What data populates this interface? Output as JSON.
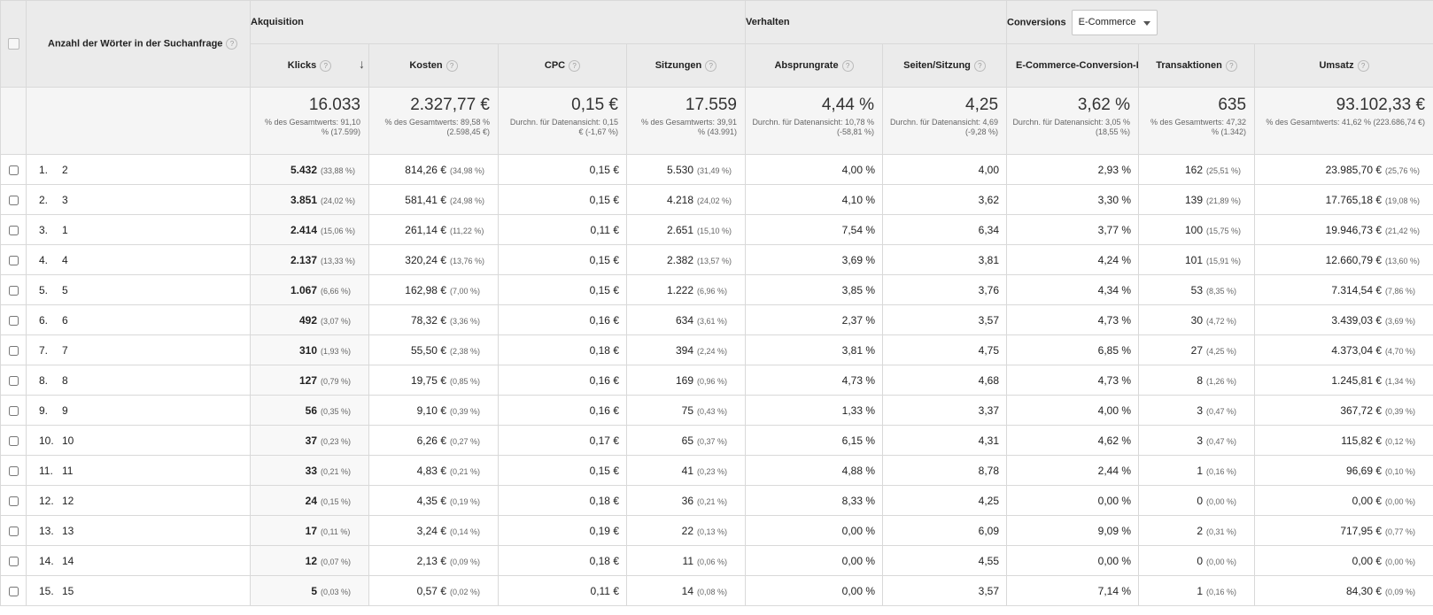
{
  "header": {
    "dimension": "Anzahl der Wörter in der Suchanfrage",
    "group_acquisition": "Akquisition",
    "group_behavior": "Verhalten",
    "group_conversions": "Conversions",
    "conversion_select_value": "E-Commerce",
    "help_glyph": "?",
    "sort_glyph": "↓",
    "columns": {
      "klicks": "Klicks",
      "kosten": "Kosten",
      "cpc": "CPC",
      "sitzungen": "Sitzungen",
      "absprungrate": "Absprungrate",
      "seiten": "Seiten/Sitzung",
      "ecr": "E-Commerce-Conversion-Rate",
      "transaktionen": "Transaktionen",
      "umsatz": "Umsatz"
    }
  },
  "totals": {
    "klicks": {
      "value": "16.033",
      "sub": "% des Gesamtwerts: 91,10 % (17.599)"
    },
    "kosten": {
      "value": "2.327,77 €",
      "sub": "% des Gesamtwerts: 89,58 % (2.598,45 €)"
    },
    "cpc": {
      "value": "0,15 €",
      "sub": "Durchn. für Datenansicht: 0,15 € (-1,67 %)"
    },
    "sitzungen": {
      "value": "17.559",
      "sub": "% des Gesamtwerts: 39,91 % (43.991)"
    },
    "absprungrate": {
      "value": "4,44 %",
      "sub": "Durchn. für Datenansicht: 10,78 % (-58,81 %)"
    },
    "seiten": {
      "value": "4,25",
      "sub": "Durchn. für Datenansicht: 4,69 (-9,28 %)"
    },
    "ecr": {
      "value": "3,62 %",
      "sub": "Durchn. für Datenansicht: 3,05 % (18,55 %)"
    },
    "transaktionen": {
      "value": "635",
      "sub": "% des Gesamtwerts: 47,32 % (1.342)"
    },
    "umsatz": {
      "value": "93.102,33 €",
      "sub": "% des Gesamtwerts: 41,62 % (223.686,74 €)"
    }
  },
  "rows": [
    {
      "idx": "1.",
      "dim": "2",
      "klicks": "5.432",
      "klicks_pct": "(33,88 %)",
      "kosten": "814,26 €",
      "kosten_pct": "(34,98 %)",
      "cpc": "0,15 €",
      "sitzungen": "5.530",
      "sitzungen_pct": "(31,49 %)",
      "absprungrate": "4,00 %",
      "seiten": "4,00",
      "ecr": "2,93 %",
      "transaktionen": "162",
      "transaktionen_pct": "(25,51 %)",
      "umsatz": "23.985,70 €",
      "umsatz_pct": "(25,76 %)"
    },
    {
      "idx": "2.",
      "dim": "3",
      "klicks": "3.851",
      "klicks_pct": "(24,02 %)",
      "kosten": "581,41 €",
      "kosten_pct": "(24,98 %)",
      "cpc": "0,15 €",
      "sitzungen": "4.218",
      "sitzungen_pct": "(24,02 %)",
      "absprungrate": "4,10 %",
      "seiten": "3,62",
      "ecr": "3,30 %",
      "transaktionen": "139",
      "transaktionen_pct": "(21,89 %)",
      "umsatz": "17.765,18 €",
      "umsatz_pct": "(19,08 %)"
    },
    {
      "idx": "3.",
      "dim": "1",
      "klicks": "2.414",
      "klicks_pct": "(15,06 %)",
      "kosten": "261,14 €",
      "kosten_pct": "(11,22 %)",
      "cpc": "0,11 €",
      "sitzungen": "2.651",
      "sitzungen_pct": "(15,10 %)",
      "absprungrate": "7,54 %",
      "seiten": "6,34",
      "ecr": "3,77 %",
      "transaktionen": "100",
      "transaktionen_pct": "(15,75 %)",
      "umsatz": "19.946,73 €",
      "umsatz_pct": "(21,42 %)"
    },
    {
      "idx": "4.",
      "dim": "4",
      "klicks": "2.137",
      "klicks_pct": "(13,33 %)",
      "kosten": "320,24 €",
      "kosten_pct": "(13,76 %)",
      "cpc": "0,15 €",
      "sitzungen": "2.382",
      "sitzungen_pct": "(13,57 %)",
      "absprungrate": "3,69 %",
      "seiten": "3,81",
      "ecr": "4,24 %",
      "transaktionen": "101",
      "transaktionen_pct": "(15,91 %)",
      "umsatz": "12.660,79 €",
      "umsatz_pct": "(13,60 %)"
    },
    {
      "idx": "5.",
      "dim": "5",
      "klicks": "1.067",
      "klicks_pct": "(6,66 %)",
      "kosten": "162,98 €",
      "kosten_pct": "(7,00 %)",
      "cpc": "0,15 €",
      "sitzungen": "1.222",
      "sitzungen_pct": "(6,96 %)",
      "absprungrate": "3,85 %",
      "seiten": "3,76",
      "ecr": "4,34 %",
      "transaktionen": "53",
      "transaktionen_pct": "(8,35 %)",
      "umsatz": "7.314,54 €",
      "umsatz_pct": "(7,86 %)"
    },
    {
      "idx": "6.",
      "dim": "6",
      "klicks": "492",
      "klicks_pct": "(3,07 %)",
      "kosten": "78,32 €",
      "kosten_pct": "(3,36 %)",
      "cpc": "0,16 €",
      "sitzungen": "634",
      "sitzungen_pct": "(3,61 %)",
      "absprungrate": "2,37 %",
      "seiten": "3,57",
      "ecr": "4,73 %",
      "transaktionen": "30",
      "transaktionen_pct": "(4,72 %)",
      "umsatz": "3.439,03 €",
      "umsatz_pct": "(3,69 %)"
    },
    {
      "idx": "7.",
      "dim": "7",
      "klicks": "310",
      "klicks_pct": "(1,93 %)",
      "kosten": "55,50 €",
      "kosten_pct": "(2,38 %)",
      "cpc": "0,18 €",
      "sitzungen": "394",
      "sitzungen_pct": "(2,24 %)",
      "absprungrate": "3,81 %",
      "seiten": "4,75",
      "ecr": "6,85 %",
      "transaktionen": "27",
      "transaktionen_pct": "(4,25 %)",
      "umsatz": "4.373,04 €",
      "umsatz_pct": "(4,70 %)"
    },
    {
      "idx": "8.",
      "dim": "8",
      "klicks": "127",
      "klicks_pct": "(0,79 %)",
      "kosten": "19,75 €",
      "kosten_pct": "(0,85 %)",
      "cpc": "0,16 €",
      "sitzungen": "169",
      "sitzungen_pct": "(0,96 %)",
      "absprungrate": "4,73 %",
      "seiten": "4,68",
      "ecr": "4,73 %",
      "transaktionen": "8",
      "transaktionen_pct": "(1,26 %)",
      "umsatz": "1.245,81 €",
      "umsatz_pct": "(1,34 %)"
    },
    {
      "idx": "9.",
      "dim": "9",
      "klicks": "56",
      "klicks_pct": "(0,35 %)",
      "kosten": "9,10 €",
      "kosten_pct": "(0,39 %)",
      "cpc": "0,16 €",
      "sitzungen": "75",
      "sitzungen_pct": "(0,43 %)",
      "absprungrate": "1,33 %",
      "seiten": "3,37",
      "ecr": "4,00 %",
      "transaktionen": "3",
      "transaktionen_pct": "(0,47 %)",
      "umsatz": "367,72 €",
      "umsatz_pct": "(0,39 %)"
    },
    {
      "idx": "10.",
      "dim": "10",
      "klicks": "37",
      "klicks_pct": "(0,23 %)",
      "kosten": "6,26 €",
      "kosten_pct": "(0,27 %)",
      "cpc": "0,17 €",
      "sitzungen": "65",
      "sitzungen_pct": "(0,37 %)",
      "absprungrate": "6,15 %",
      "seiten": "4,31",
      "ecr": "4,62 %",
      "transaktionen": "3",
      "transaktionen_pct": "(0,47 %)",
      "umsatz": "115,82 €",
      "umsatz_pct": "(0,12 %)"
    },
    {
      "idx": "11.",
      "dim": "11",
      "klicks": "33",
      "klicks_pct": "(0,21 %)",
      "kosten": "4,83 €",
      "kosten_pct": "(0,21 %)",
      "cpc": "0,15 €",
      "sitzungen": "41",
      "sitzungen_pct": "(0,23 %)",
      "absprungrate": "4,88 %",
      "seiten": "8,78",
      "ecr": "2,44 %",
      "transaktionen": "1",
      "transaktionen_pct": "(0,16 %)",
      "umsatz": "96,69 €",
      "umsatz_pct": "(0,10 %)"
    },
    {
      "idx": "12.",
      "dim": "12",
      "klicks": "24",
      "klicks_pct": "(0,15 %)",
      "kosten": "4,35 €",
      "kosten_pct": "(0,19 %)",
      "cpc": "0,18 €",
      "sitzungen": "36",
      "sitzungen_pct": "(0,21 %)",
      "absprungrate": "8,33 %",
      "seiten": "4,25",
      "ecr": "0,00 %",
      "transaktionen": "0",
      "transaktionen_pct": "(0,00 %)",
      "umsatz": "0,00 €",
      "umsatz_pct": "(0,00 %)"
    },
    {
      "idx": "13.",
      "dim": "13",
      "klicks": "17",
      "klicks_pct": "(0,11 %)",
      "kosten": "3,24 €",
      "kosten_pct": "(0,14 %)",
      "cpc": "0,19 €",
      "sitzungen": "22",
      "sitzungen_pct": "(0,13 %)",
      "absprungrate": "0,00 %",
      "seiten": "6,09",
      "ecr": "9,09 %",
      "transaktionen": "2",
      "transaktionen_pct": "(0,31 %)",
      "umsatz": "717,95 €",
      "umsatz_pct": "(0,77 %)"
    },
    {
      "idx": "14.",
      "dim": "14",
      "klicks": "12",
      "klicks_pct": "(0,07 %)",
      "kosten": "2,13 €",
      "kosten_pct": "(0,09 %)",
      "cpc": "0,18 €",
      "sitzungen": "11",
      "sitzungen_pct": "(0,06 %)",
      "absprungrate": "0,00 %",
      "seiten": "4,55",
      "ecr": "0,00 %",
      "transaktionen": "0",
      "transaktionen_pct": "(0,00 %)",
      "umsatz": "0,00 €",
      "umsatz_pct": "(0,00 %)"
    },
    {
      "idx": "15.",
      "dim": "15",
      "klicks": "5",
      "klicks_pct": "(0,03 %)",
      "kosten": "0,57 €",
      "kosten_pct": "(0,02 %)",
      "cpc": "0,11 €",
      "sitzungen": "14",
      "sitzungen_pct": "(0,08 %)",
      "absprungrate": "0,00 %",
      "seiten": "3,57",
      "ecr": "7,14 %",
      "transaktionen": "1",
      "transaktionen_pct": "(0,16 %)",
      "umsatz": "84,30 €",
      "umsatz_pct": "(0,09 %)"
    }
  ]
}
